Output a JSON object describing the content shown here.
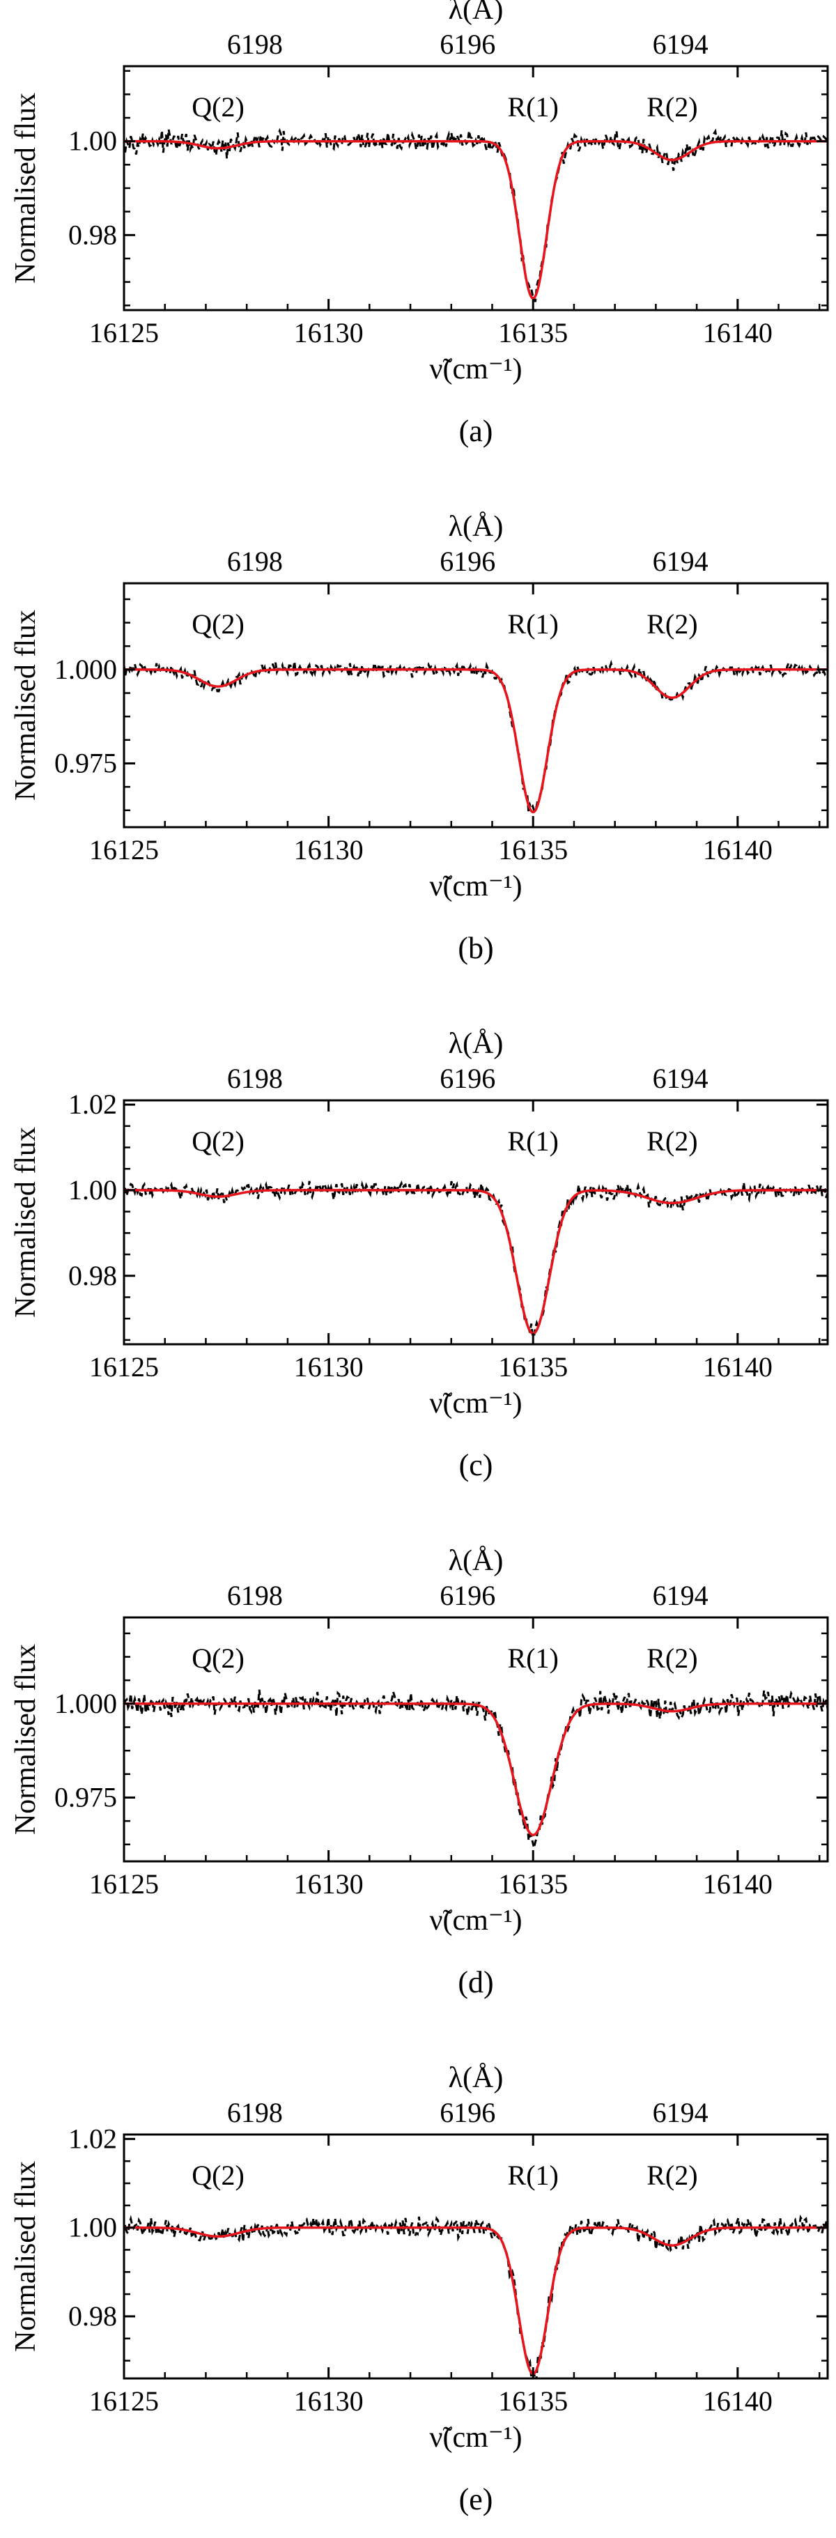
{
  "chart_data": [
    {
      "type": "line",
      "caption": "(a)",
      "xlabel": "ν̃(cm⁻¹)",
      "ylabel": "Normalised flux",
      "top_xlabel": "λ(Å)",
      "xlim": [
        16125,
        16142.2
      ],
      "ylim": [
        0.964,
        1.016
      ],
      "xticks": [
        16125,
        16130,
        16135,
        16140
      ],
      "yticks": [
        0.98,
        1.0
      ],
      "ytick_labels": [
        "0.98",
        "1.00"
      ],
      "top_ticks": [
        {
          "label": "6198",
          "x": 16128.2
        },
        {
          "label": "6196",
          "x": 16133.4
        },
        {
          "label": "6194",
          "x": 16138.6
        }
      ],
      "line_labels": [
        {
          "label": "Q(2)",
          "x": 16127.3
        },
        {
          "label": "R(1)",
          "x": 16135.0
        },
        {
          "label": "R(2)",
          "x": 16138.4
        }
      ],
      "features": [
        {
          "center": 16127.3,
          "depth": 0.0015,
          "sigma": 0.45
        },
        {
          "center": 16135.0,
          "depth": 0.0335,
          "sigma": 0.33
        },
        {
          "center": 16138.4,
          "depth": 0.004,
          "sigma": 0.42
        }
      ],
      "noise": 0.0012,
      "series": []
    },
    {
      "type": "line",
      "caption": "(b)",
      "xlabel": "ν̃(cm⁻¹)",
      "ylabel": "Normalised flux",
      "top_xlabel": "λ(Å)",
      "xlim": [
        16125,
        16142.2
      ],
      "ylim": [
        0.958,
        1.023
      ],
      "xticks": [
        16125,
        16130,
        16135,
        16140
      ],
      "yticks": [
        0.975,
        1.0
      ],
      "ytick_labels": [
        "0.975",
        "1.000"
      ],
      "top_ticks": [
        {
          "label": "6198",
          "x": 16128.2
        },
        {
          "label": "6196",
          "x": 16133.4
        },
        {
          "label": "6194",
          "x": 16138.6
        }
      ],
      "line_labels": [
        {
          "label": "Q(2)",
          "x": 16127.3
        },
        {
          "label": "R(1)",
          "x": 16135.0
        },
        {
          "label": "R(2)",
          "x": 16138.4
        }
      ],
      "features": [
        {
          "center": 16127.3,
          "depth": 0.0045,
          "sigma": 0.45
        },
        {
          "center": 16135.0,
          "depth": 0.038,
          "sigma": 0.35
        },
        {
          "center": 16138.4,
          "depth": 0.0075,
          "sigma": 0.42
        }
      ],
      "noise": 0.001,
      "series": []
    },
    {
      "type": "line",
      "caption": "(c)",
      "xlabel": "ν̃(cm⁻¹)",
      "ylabel": "Normalised flux",
      "top_xlabel": "λ(Å)",
      "xlim": [
        16125,
        16142.2
      ],
      "ylim": [
        0.964,
        1.021
      ],
      "xticks": [
        16125,
        16130,
        16135,
        16140
      ],
      "yticks": [
        0.98,
        1.0,
        1.02
      ],
      "ytick_labels": [
        "0.98",
        "1.00",
        "1.02"
      ],
      "top_ticks": [
        {
          "label": "6198",
          "x": 16128.2
        },
        {
          "label": "6196",
          "x": 16133.4
        },
        {
          "label": "6194",
          "x": 16138.6
        }
      ],
      "line_labels": [
        {
          "label": "Q(2)",
          "x": 16127.3
        },
        {
          "label": "R(1)",
          "x": 16135.0
        },
        {
          "label": "R(2)",
          "x": 16138.4
        }
      ],
      "features": [
        {
          "center": 16127.3,
          "depth": 0.0015,
          "sigma": 0.45
        },
        {
          "center": 16135.0,
          "depth": 0.0335,
          "sigma": 0.4
        },
        {
          "center": 16138.4,
          "depth": 0.003,
          "sigma": 0.6
        }
      ],
      "noise": 0.0011,
      "series": []
    },
    {
      "type": "line",
      "caption": "(d)",
      "xlabel": "ν̃(cm⁻¹)",
      "ylabel": "Normalised flux",
      "top_xlabel": "λ(Å)",
      "xlim": [
        16125,
        16142.2
      ],
      "ylim": [
        0.958,
        1.023
      ],
      "xticks": [
        16125,
        16130,
        16135,
        16140
      ],
      "yticks": [
        0.975,
        1.0
      ],
      "ytick_labels": [
        "0.975",
        "1.000"
      ],
      "top_ticks": [
        {
          "label": "6198",
          "x": 16128.2
        },
        {
          "label": "6196",
          "x": 16133.4
        },
        {
          "label": "6194",
          "x": 16138.6
        }
      ],
      "line_labels": [
        {
          "label": "Q(2)",
          "x": 16127.3
        },
        {
          "label": "R(1)",
          "x": 16135.0
        },
        {
          "label": "R(2)",
          "x": 16138.4
        }
      ],
      "features": [
        {
          "center": 16127.3,
          "depth": 0.0,
          "sigma": 0.45
        },
        {
          "center": 16135.0,
          "depth": 0.035,
          "sigma": 0.45
        },
        {
          "center": 16138.4,
          "depth": 0.002,
          "sigma": 0.45
        }
      ],
      "noise": 0.0018,
      "series": []
    },
    {
      "type": "line",
      "caption": "(e)",
      "xlabel": "ν̃(cm⁻¹)",
      "ylabel": "Normalised flux",
      "top_xlabel": "λ(Å)",
      "xlim": [
        16125,
        16142.2
      ],
      "ylim": [
        0.966,
        1.021
      ],
      "xticks": [
        16125,
        16130,
        16135,
        16140
      ],
      "yticks": [
        0.98,
        1.0,
        1.02
      ],
      "ytick_labels": [
        "0.98",
        "1.00",
        "1.02"
      ],
      "top_ticks": [
        {
          "label": "6198",
          "x": 16128.2
        },
        {
          "label": "6196",
          "x": 16133.4
        },
        {
          "label": "6194",
          "x": 16138.6
        }
      ],
      "line_labels": [
        {
          "label": "Q(2)",
          "x": 16127.3
        },
        {
          "label": "R(1)",
          "x": 16135.0
        },
        {
          "label": "R(2)",
          "x": 16138.4
        }
      ],
      "features": [
        {
          "center": 16127.3,
          "depth": 0.002,
          "sigma": 0.5
        },
        {
          "center": 16135.0,
          "depth": 0.033,
          "sigma": 0.35
        },
        {
          "center": 16138.4,
          "depth": 0.004,
          "sigma": 0.45
        }
      ],
      "noise": 0.0012,
      "series": []
    }
  ],
  "colors": {
    "model": "#e8141b",
    "observed": "#000000",
    "axes": "#000000"
  }
}
